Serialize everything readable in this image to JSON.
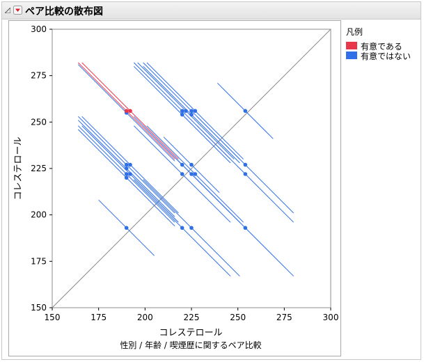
{
  "report": {
    "title": "ペア比較の散布図"
  },
  "icons": {
    "collapse": "collapse-triangle-icon",
    "menu": "red-dropdown-menu-icon"
  },
  "colors": {
    "significant": "#e8374a",
    "not_significant": "#2f6fe8",
    "diagonal": "#8a8a8a",
    "frame": "#a8a8a8"
  },
  "chart_data": {
    "type": "scatter",
    "xlabel": "コレステロール",
    "xlabel_sub": "性別 / 年齢 / 喫煙歴に関するペア比較",
    "ylabel": "コレステロール",
    "xlim": [
      150,
      300
    ],
    "ylim": [
      150,
      300
    ],
    "x_ticks": [
      150,
      175,
      200,
      225,
      250,
      275,
      300
    ],
    "y_ticks": [
      150,
      175,
      200,
      225,
      250,
      275,
      300
    ],
    "grid": false,
    "diagonal_reference": true,
    "legend": {
      "title": "凡例",
      "placement": "right",
      "entries": [
        {
          "label": "有意である",
          "color": "#e8374a"
        },
        {
          "label": "有意ではない",
          "color": "#2f6fe8"
        }
      ]
    },
    "points": [
      {
        "x": 190,
        "y": 256,
        "half": 26,
        "sig": true
      },
      {
        "x": 192,
        "y": 256,
        "half": 26,
        "sig": true
      },
      {
        "x": 190,
        "y": 255,
        "half": 26,
        "sig": false
      },
      {
        "x": 220,
        "y": 256,
        "half": 26,
        "sig": false
      },
      {
        "x": 222,
        "y": 256,
        "half": 26,
        "sig": false
      },
      {
        "x": 225,
        "y": 256,
        "half": 26,
        "sig": false
      },
      {
        "x": 227,
        "y": 256,
        "half": 26,
        "sig": false
      },
      {
        "x": 220,
        "y": 254,
        "half": 26,
        "sig": false
      },
      {
        "x": 225,
        "y": 254,
        "half": 26,
        "sig": false
      },
      {
        "x": 254,
        "y": 256,
        "half": 15,
        "sig": false
      },
      {
        "x": 190,
        "y": 227,
        "half": 26,
        "sig": false
      },
      {
        "x": 192,
        "y": 227,
        "half": 26,
        "sig": false
      },
      {
        "x": 190,
        "y": 225,
        "half": 26,
        "sig": false
      },
      {
        "x": 190,
        "y": 222,
        "half": 26,
        "sig": false
      },
      {
        "x": 192,
        "y": 222,
        "half": 26,
        "sig": false
      },
      {
        "x": 190,
        "y": 220,
        "half": 26,
        "sig": false
      },
      {
        "x": 220,
        "y": 227,
        "half": 26,
        "sig": false
      },
      {
        "x": 225,
        "y": 227,
        "half": 15,
        "sig": false
      },
      {
        "x": 220,
        "y": 222,
        "half": 26,
        "sig": false
      },
      {
        "x": 225,
        "y": 222,
        "half": 26,
        "sig": false
      },
      {
        "x": 227,
        "y": 222,
        "half": 26,
        "sig": false
      },
      {
        "x": 254,
        "y": 227,
        "half": 26,
        "sig": false
      },
      {
        "x": 254,
        "y": 222,
        "half": 26,
        "sig": false
      },
      {
        "x": 190,
        "y": 193,
        "half": 15,
        "sig": false
      },
      {
        "x": 220,
        "y": 193,
        "half": 26,
        "sig": false
      },
      {
        "x": 225,
        "y": 193,
        "half": 26,
        "sig": false
      },
      {
        "x": 254,
        "y": 193,
        "half": 26,
        "sig": false
      }
    ]
  }
}
